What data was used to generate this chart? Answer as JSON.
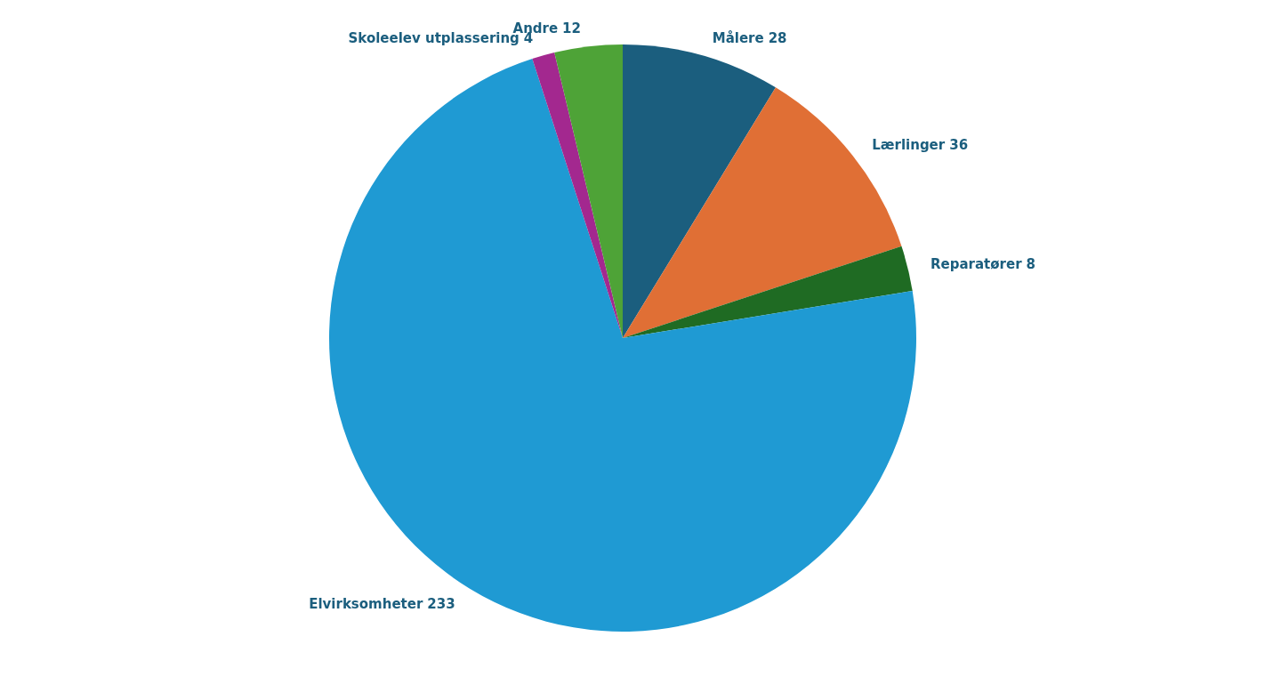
{
  "chart_data": {
    "type": "pie",
    "categories": [
      "Målere",
      "Lærlinger",
      "Reparatører",
      "Elvirksomheter",
      "Skoleelev utplassering",
      "Andre"
    ],
    "values": [
      28,
      36,
      8,
      233,
      4,
      12
    ],
    "colors": [
      "#1b5e7e",
      "#e06f35",
      "#1f6b23",
      "#1f9ad3",
      "#a3288f",
      "#4ea337"
    ],
    "data_labels": true
  }
}
